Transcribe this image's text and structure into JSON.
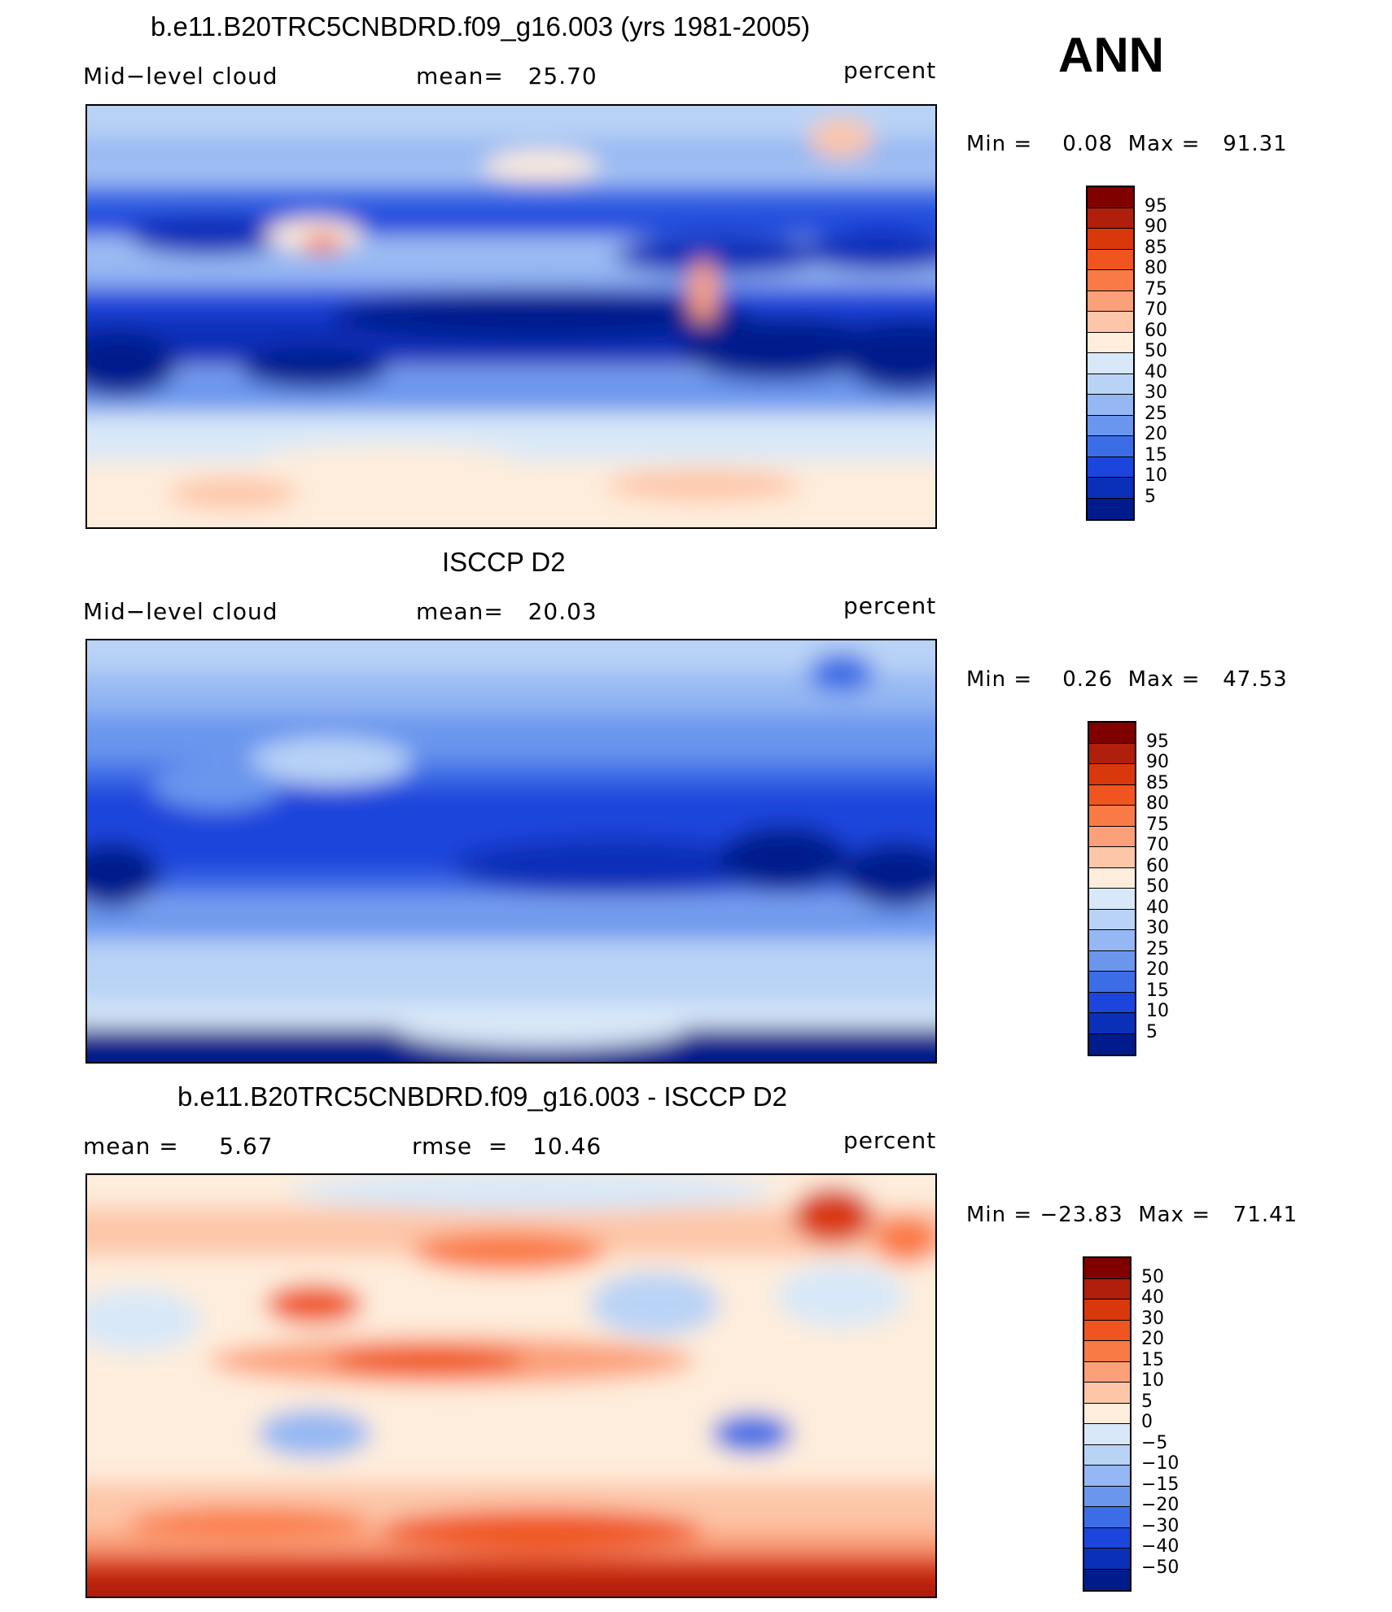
{
  "season_label": "ANN",
  "panels": [
    {
      "title": "b.e11.B20TRC5CNBDRD.f09_g16.003 (yrs 1981-2005)",
      "left_label": "Mid−level cloud",
      "center_label": "mean=   25.70",
      "units": "percent",
      "minmax": "Min =    0.08  Max =   91.31",
      "colorbar_ticks": [
        "95",
        "90",
        "85",
        "80",
        "75",
        "70",
        "60",
        "50",
        "40",
        "30",
        "25",
        "20",
        "15",
        "10",
        "5"
      ],
      "colorbar_colors": [
        "#800000",
        "#b01e0c",
        "#d9370c",
        "#f0541f",
        "#fa7a45",
        "#fca07a",
        "#fdc6a8",
        "#feeddc",
        "#d8e8f8",
        "#b9d3f6",
        "#95b7f3",
        "#6b96ee",
        "#3d6de6",
        "#1b45dc",
        "#0a2fb8",
        "#001c8c"
      ]
    },
    {
      "title": "ISCCP D2",
      "left_label": "Mid−level cloud",
      "center_label": "mean=   20.03",
      "units": "percent",
      "minmax": "Min =    0.26  Max =   47.53",
      "colorbar_ticks": [
        "95",
        "90",
        "85",
        "80",
        "75",
        "70",
        "60",
        "50",
        "40",
        "30",
        "25",
        "20",
        "15",
        "10",
        "5"
      ],
      "colorbar_colors": [
        "#800000",
        "#b01e0c",
        "#d9370c",
        "#f0541f",
        "#fa7a45",
        "#fca07a",
        "#fdc6a8",
        "#feeddc",
        "#d8e8f8",
        "#b9d3f6",
        "#95b7f3",
        "#6b96ee",
        "#3d6de6",
        "#1b45dc",
        "#0a2fb8",
        "#001c8c"
      ]
    },
    {
      "title": "b.e11.B20TRC5CNBDRD.f09_g16.003 - ISCCP D2",
      "left_label": "mean =     5.67",
      "center_label": "rmse  =   10.46",
      "units": "percent",
      "minmax": "Min = −23.83  Max =   71.41",
      "colorbar_ticks": [
        "50",
        "40",
        "30",
        "20",
        "15",
        "10",
        "5",
        "0",
        "−5",
        "−10",
        "−15",
        "−20",
        "−30",
        "−40",
        "−50"
      ],
      "colorbar_colors": [
        "#800000",
        "#b01e0c",
        "#d9370c",
        "#f0541f",
        "#fa7a45",
        "#fca07a",
        "#fdc6a8",
        "#feeddc",
        "#d8e8f8",
        "#b9d3f6",
        "#95b7f3",
        "#6b96ee",
        "#3d6de6",
        "#1b45dc",
        "#0a2fb8",
        "#001c8c"
      ]
    }
  ]
}
